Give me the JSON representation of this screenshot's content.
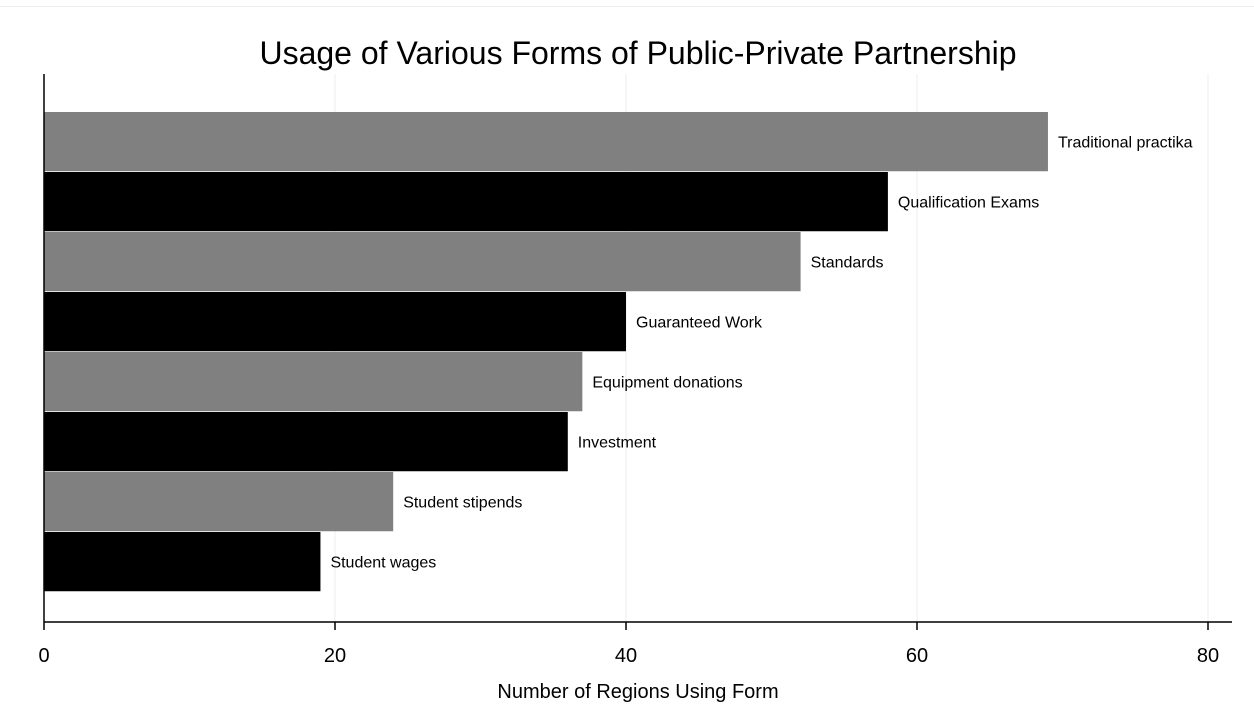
{
  "chart_data": {
    "type": "bar",
    "orientation": "horizontal",
    "title": "Usage of Various Forms of Public-Private Partnership",
    "xlabel": "Number of Regions Using Form",
    "ylabel": "",
    "xlim": [
      0,
      80
    ],
    "xticks": [
      0,
      20,
      40,
      60,
      80
    ],
    "grid": true,
    "legend": "none",
    "categories": [
      "Traditional practika",
      "Qualification Exams",
      "Standards",
      "Guaranteed Work",
      "Equipment donations",
      "Investment",
      "Student stipends",
      "Student wages"
    ],
    "values": [
      69,
      58,
      52,
      40,
      37,
      36,
      24,
      19
    ],
    "colors": [
      "#808080",
      "#000000",
      "#808080",
      "#000000",
      "#808080",
      "#000000",
      "#808080",
      "#000000"
    ]
  }
}
